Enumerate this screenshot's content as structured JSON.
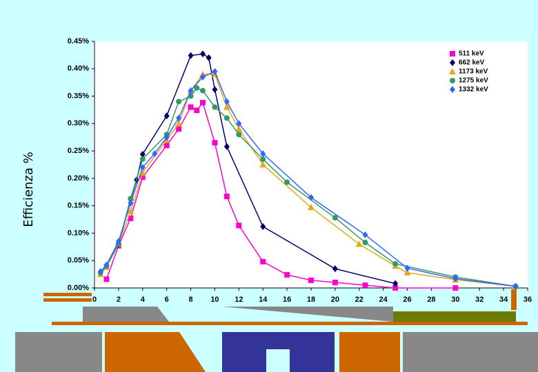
{
  "chart_data": {
    "type": "scatter",
    "y_label": "Efficienza %",
    "xlim": [
      0,
      36
    ],
    "xticks": [
      0,
      2,
      4,
      6,
      8,
      10,
      12,
      14,
      16,
      18,
      20,
      22,
      24,
      26,
      28,
      30,
      32,
      34,
      36
    ],
    "ylim": [
      0,
      0.45
    ],
    "yticks": [
      {
        "value": 0,
        "label": "0.00%"
      },
      {
        "value": 0.05,
        "label": "0.05%"
      },
      {
        "value": 0.1,
        "label": "0.10%"
      },
      {
        "value": 0.15,
        "label": "0.15%"
      },
      {
        "value": 0.2,
        "label": "0.20%"
      },
      {
        "value": 0.25,
        "label": "0.25%"
      },
      {
        "value": 0.3,
        "label": "0.30%"
      },
      {
        "value": 0.35,
        "label": "0.35%"
      },
      {
        "value": 0.4,
        "label": "0.40%"
      },
      {
        "value": 0.45,
        "label": "0.45%"
      }
    ],
    "series": [
      {
        "name": "511 keV",
        "color": "#ff00cc",
        "marker": "square",
        "x": [
          1,
          2,
          3,
          4,
          6,
          7,
          8,
          8.5,
          9,
          10,
          11,
          12,
          14,
          16,
          18,
          20,
          22.5,
          25,
          30
        ],
        "values": [
          0.016,
          0.077,
          0.127,
          0.202,
          0.26,
          0.29,
          0.33,
          0.324,
          0.338,
          0.265,
          0.167,
          0.114,
          0.048,
          0.024,
          0.014,
          0.01,
          0.005,
          0,
          0
        ]
      },
      {
        "name": "662 keV",
        "color": "#000066",
        "marker": "diamond",
        "x": [
          0.5,
          1,
          2,
          3,
          3.5,
          4,
          6,
          8,
          9,
          9.5,
          10,
          11,
          14,
          20,
          25
        ],
        "values": [
          0.028,
          0.041,
          0.079,
          0.161,
          0.197,
          0.244,
          0.314,
          0.424,
          0.427,
          0.42,
          0.362,
          0.258,
          0.112,
          0.035,
          0.008
        ]
      },
      {
        "name": "1173 keV",
        "color": "#e6a817",
        "marker": "triangle",
        "x": [
          0.5,
          1,
          2,
          3,
          4,
          6,
          7,
          8,
          9,
          10,
          11,
          12,
          14,
          18,
          22,
          25,
          26,
          30,
          35
        ],
        "values": [
          0.025,
          0.038,
          0.08,
          0.14,
          0.21,
          0.27,
          0.3,
          0.36,
          0.39,
          0.39,
          0.33,
          0.29,
          0.225,
          0.147,
          0.08,
          0.04,
          0.028,
          0.015,
          0.003
        ]
      },
      {
        "name": "1275 keV",
        "color": "#339966",
        "marker": "circle",
        "x": [
          0.5,
          1,
          2,
          3,
          4,
          6,
          7,
          8,
          8.5,
          9,
          10,
          11,
          12,
          14,
          16,
          20,
          22.5,
          25,
          30,
          35
        ],
        "values": [
          0.028,
          0.04,
          0.08,
          0.163,
          0.235,
          0.28,
          0.34,
          0.35,
          0.365,
          0.36,
          0.33,
          0.31,
          0.28,
          0.235,
          0.193,
          0.128,
          0.083,
          0.044,
          0.02,
          0.003
        ]
      },
      {
        "name": "1332 keV",
        "color": "#3366ff",
        "marker": "diamond",
        "x": [
          0.5,
          1,
          2,
          3,
          4,
          5,
          6,
          7,
          8,
          9,
          10,
          11,
          12,
          14,
          18,
          22.5,
          26,
          30,
          35
        ],
        "values": [
          0.03,
          0.042,
          0.085,
          0.155,
          0.22,
          0.245,
          0.275,
          0.31,
          0.36,
          0.385,
          0.395,
          0.34,
          0.3,
          0.245,
          0.165,
          0.097,
          0.036,
          0.017,
          0.003
        ]
      }
    ]
  }
}
